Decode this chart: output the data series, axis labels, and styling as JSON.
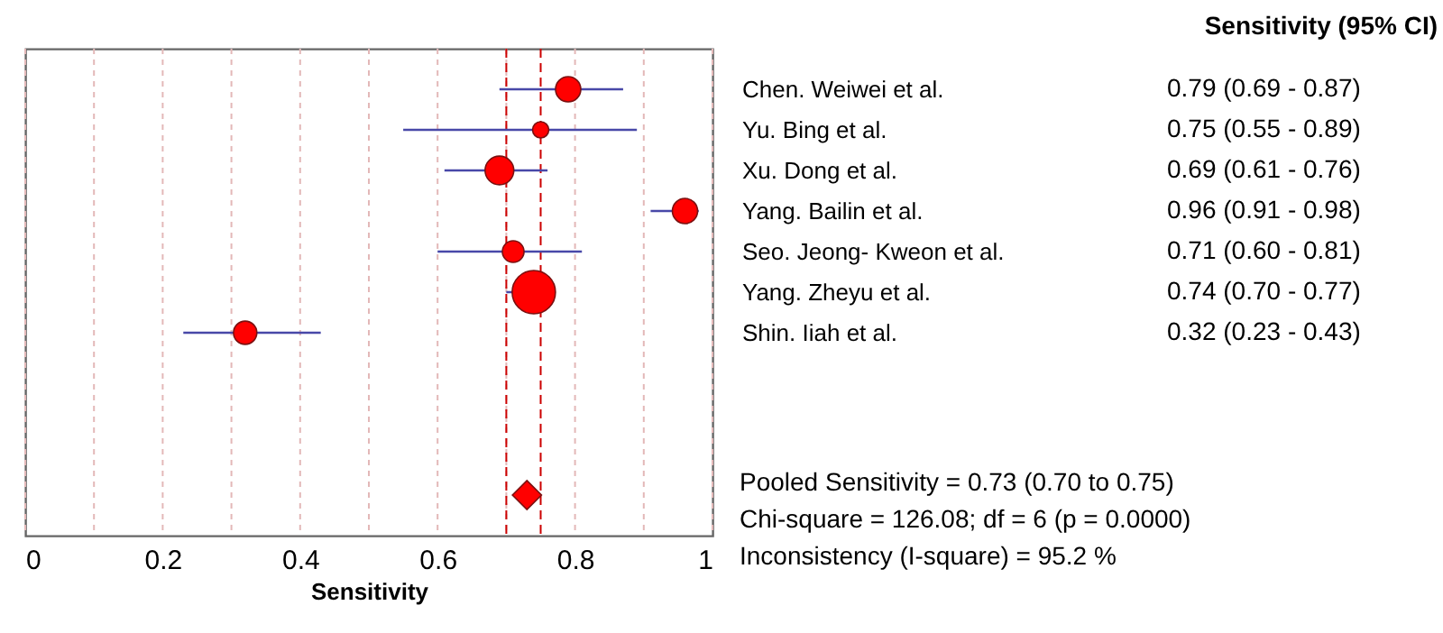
{
  "chart_data": {
    "type": "bubble",
    "orientation": "horizontal",
    "xlabel": "Sensitivity",
    "categories": [
      "Chen. Weiwei et al.",
      "Yu. Bing et al.",
      "Xu. Dong et al.",
      "Yang. Bailin et al.",
      "Seo. Jeong- Kweon et al.",
      "Yang. Zheyu et al.",
      "Shin. Iiah et al.",
      null,
      null,
      null,
      null
    ],
    "series": [
      {
        "color": "#ff0000",
        "values": [
          0.79,
          0.75,
          0.69,
          0.96,
          0.71,
          0.74,
          0.32,
          null,
          null,
          null,
          null
        ],
        "value_labels": [
          "0.79 (0.69 - 0.87)",
          "0.75 (0.55 - 0.89)",
          "0.69 (0.61 - 0.76)",
          "0.96 (0.91 - 0.98)",
          "0.71 (0.60 - 0.81)",
          "0.74 (0.70 - 0.77)",
          "0.32 (0.23 - 0.43)",
          null,
          null,
          null,
          null
        ],
        "errors": [
          [
            0.69,
            0.87
          ],
          [
            0.55,
            0.89
          ],
          [
            0.61,
            0.76
          ],
          [
            0.91,
            0.98
          ],
          [
            0.6,
            0.81
          ],
          [
            0.7,
            0.77
          ],
          [
            0.23,
            0.43
          ],
          null,
          null,
          null,
          null
        ],
        "sizes": [
          0.34,
          0.14,
          0.44,
          0.34,
          0.25,
          1,
          0.29,
          null,
          null,
          null,
          null
        ]
      },
      {
        "type": "scatter",
        "marker": "diamond",
        "color": "#ff0000",
        "values": [
          null,
          null,
          null,
          null,
          null,
          null,
          null,
          null,
          null,
          null,
          0.73
        ]
      }
    ],
    "xlim": [
      0,
      1
    ],
    "xticks": [
      0,
      {
        "value": 0.1,
        "label": null
      },
      0.2,
      {
        "value": 0.3,
        "label": null
      },
      0.4,
      {
        "value": 0.5,
        "label": null
      },
      0.6,
      {
        "value": 0.7,
        "label": null
      },
      0.8,
      {
        "value": 0.9,
        "label": null
      },
      1
    ],
    "grid": "x",
    "ref_lines": [
      {
        "axis": "x",
        "value": 0.7,
        "color": "#cc0000",
        "line_style": "dashed"
      },
      {
        "axis": "x",
        "value": 0.75,
        "color": "#cc0000",
        "line_style": "dashed"
      }
    ],
    "annotations": [
      "Sensitivity (95% CI)",
      "Pooled Sensitivity = 0.73 (0.70 to 0.75)",
      "Chi-square = 126.08; df =  6 (p = 0.0000)",
      "Inconsistency (I-square) = 95.2 %"
    ]
  }
}
